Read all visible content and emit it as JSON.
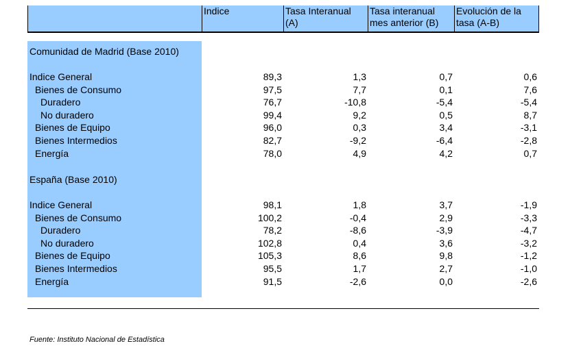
{
  "headers": {
    "col0": "",
    "col1": "Indice",
    "col2_line1": "Tasa Interanual",
    "col2_line2": "(A)",
    "col3_line1": "Tasa interanual",
    "col3_line2": "mes anterior (B)",
    "col4_line1": "Evolución de la",
    "col4_line2": "tasa (A-B)"
  },
  "sections": [
    {
      "title": "Comunidad de Madrid (Base 2010)",
      "rows": [
        {
          "label": "Indice General",
          "indice": "89,3",
          "tasa_a": "1,3",
          "tasa_b": "0,7",
          "evol": "0,6"
        },
        {
          "label": "Bienes de Consumo",
          "indice": "97,5",
          "tasa_a": "7,7",
          "tasa_b": "0,1",
          "evol": "7,6"
        },
        {
          "label": "Duradero",
          "indice": "76,7",
          "tasa_a": "-10,8",
          "tasa_b": "-5,4",
          "evol": "-5,4"
        },
        {
          "label": "No duradero",
          "indice": "99,4",
          "tasa_a": "9,2",
          "tasa_b": "0,5",
          "evol": "8,7"
        },
        {
          "label": "Bienes de Equipo",
          "indice": "96,0",
          "tasa_a": "0,3",
          "tasa_b": "3,4",
          "evol": "-3,1"
        },
        {
          "label": "Bienes Intermedios",
          "indice": "82,7",
          "tasa_a": "-9,2",
          "tasa_b": "-6,4",
          "evol": "-2,8"
        },
        {
          "label": "Energía",
          "indice": "78,0",
          "tasa_a": "4,9",
          "tasa_b": "4,2",
          "evol": "0,7"
        }
      ]
    },
    {
      "title": "España (Base 2010)",
      "rows": [
        {
          "label": "Indice General",
          "indice": "98,1",
          "tasa_a": "1,8",
          "tasa_b": "3,7",
          "evol": "-1,9"
        },
        {
          "label": "Bienes de Consumo",
          "indice": "100,2",
          "tasa_a": "-0,4",
          "tasa_b": "2,9",
          "evol": "-3,3"
        },
        {
          "label": "Duradero",
          "indice": "78,2",
          "tasa_a": "-8,6",
          "tasa_b": "-3,9",
          "evol": "-4,7"
        },
        {
          "label": "No duradero",
          "indice": "102,8",
          "tasa_a": "0,4",
          "tasa_b": "3,6",
          "evol": "-3,2"
        },
        {
          "label": "Bienes de Equipo",
          "indice": "105,3",
          "tasa_a": "8,6",
          "tasa_b": "9,8",
          "evol": "-1,2"
        },
        {
          "label": "Bienes Intermedios",
          "indice": "95,5",
          "tasa_a": "1,7",
          "tasa_b": "2,7",
          "evol": "-1,0"
        },
        {
          "label": "Energía",
          "indice": "91,5",
          "tasa_a": "-2,6",
          "tasa_b": "0,0",
          "evol": "-2,6"
        }
      ]
    }
  ],
  "source": "Fuente: Instituto Nacional de Estadística",
  "colors": {
    "highlight": "#99ccff"
  }
}
